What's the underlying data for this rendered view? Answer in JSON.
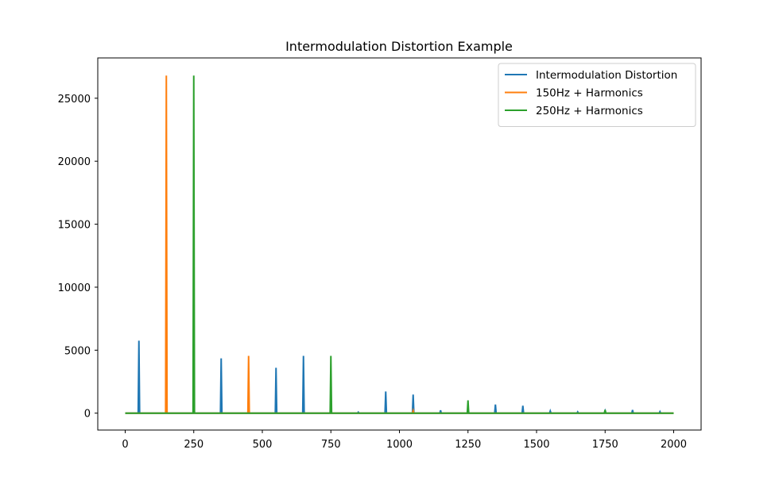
{
  "chart_data": {
    "type": "line",
    "title": "Intermodulation Distortion Example",
    "xlabel": "",
    "ylabel": "",
    "xlim": [
      -100,
      2100
    ],
    "ylim": [
      -1340,
      28200
    ],
    "xticks": [
      0,
      250,
      500,
      750,
      1000,
      1250,
      1500,
      1750,
      2000
    ],
    "yticks": [
      0,
      5000,
      10000,
      15000,
      20000,
      25000
    ],
    "x_range": [
      0,
      2000
    ],
    "grid": false,
    "legend_position": "top-right",
    "series": [
      {
        "name": "Intermodulation Distortion",
        "color": "#1f77b4",
        "peaks": [
          [
            50,
            5750
          ],
          [
            350,
            4350
          ],
          [
            550,
            3600
          ],
          [
            650,
            4550
          ],
          [
            850,
            80
          ],
          [
            950,
            1720
          ],
          [
            1050,
            1480
          ],
          [
            1150,
            230
          ],
          [
            1350,
            690
          ],
          [
            1450,
            590
          ],
          [
            1550,
            170
          ],
          [
            1650,
            100
          ],
          [
            1750,
            180
          ],
          [
            1850,
            250
          ],
          [
            1950,
            120
          ]
        ]
      },
      {
        "name": "150Hz + Harmonics",
        "color": "#ff7f0e",
        "peaks": [
          [
            150,
            26800
          ],
          [
            450,
            4550
          ],
          [
            1050,
            200
          ]
        ]
      },
      {
        "name": "250Hz + Harmonics",
        "color": "#2ca02c",
        "peaks": [
          [
            250,
            26800
          ],
          [
            750,
            4550
          ],
          [
            1250,
            1020
          ],
          [
            1750,
            260
          ]
        ]
      }
    ]
  }
}
